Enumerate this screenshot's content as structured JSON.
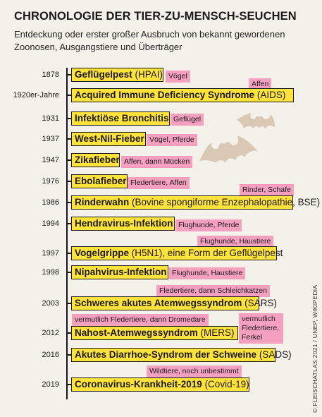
{
  "header": {
    "title": "CHRONOLOGIE DER TIER-ZU-MENSCH-SEUCHEN",
    "subtitle": "Entdeckung oder erster großer Ausbruch von bekannt gewordenen Zoonosen, Ausgangstiere und Überträger"
  },
  "credit": "© FLEISCHATLAS 2021 / UNEP, WIKIPEDIA",
  "colors": {
    "event_fill": "#ffe23a",
    "host_fill": "#f5a0be",
    "bat_fill": "#d9c8b4"
  },
  "icons": [
    "bat-icon"
  ],
  "timeline": [
    {
      "year": "1878",
      "name": "Geflügelpest",
      "detail": " (HPAI)",
      "host": "Vögel"
    },
    {
      "year": "1920er-Jahre",
      "name": "Acquired Immune Deficiency Syndrome",
      "detail": " (AIDS)",
      "host": "Affen"
    },
    {
      "year": "1931",
      "name": "Infektiöse Bronchitis",
      "detail": "",
      "host": "Geflügel"
    },
    {
      "year": "1937",
      "name": "West-Nil-Fieber",
      "detail": "",
      "host": "Vögel, Pferde"
    },
    {
      "year": "1947",
      "name": "Zikafieber",
      "detail": "",
      "host": "Affen, dann Mücken"
    },
    {
      "year": "1976",
      "name": "Ebolafieber",
      "detail": "",
      "host": "Fledertiere, Affen"
    },
    {
      "year": "1986",
      "name": "Rinderwahn",
      "detail": " (Bovine spongiforme Enzephalopathie, BSE)",
      "host": "Rinder, Schafe"
    },
    {
      "year": "1994",
      "name": "Hendravirus-Infektion",
      "detail": "",
      "host": "Flughunde, Pferde"
    },
    {
      "year": "1997",
      "name": "Vogelgrippe",
      "detail": " (H5N1), eine Form der Geflügelpest",
      "host": "Flughunde, Haustiere"
    },
    {
      "year": "1998",
      "name": "Nipahvirus-Infektion",
      "detail": "",
      "host": "Flughunde, Haustiere"
    },
    {
      "year": "2003",
      "name": "Schweres akutes Atemwegssyndrom",
      "detail": " (SARS)",
      "host": "Fledertiere, dann Schleichkatzen"
    },
    {
      "year": "2012",
      "name": "Nahost-Atemwegssyndrom",
      "detail": " (MERS)",
      "host": "vermutlich Fledertiere, dann Dromedare"
    },
    {
      "year": "2016",
      "name": "Akutes Diarrhoe-Syndrom der Schweine",
      "detail": " (SADS)",
      "host": "vermutlich Fledertiere, Ferkel"
    },
    {
      "year": "2019",
      "name": "Coronavirus-Krankheit-2019",
      "detail": " (Covid-19)",
      "host": "Wildtiere, noch unbestimmt"
    }
  ]
}
